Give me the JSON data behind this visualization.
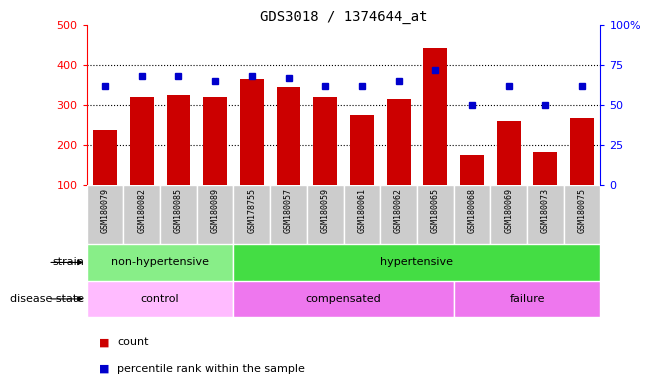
{
  "title": "GDS3018 / 1374644_at",
  "samples": [
    "GSM180079",
    "GSM180082",
    "GSM180085",
    "GSM180089",
    "GSM178755",
    "GSM180057",
    "GSM180059",
    "GSM180061",
    "GSM180062",
    "GSM180065",
    "GSM180068",
    "GSM180069",
    "GSM180073",
    "GSM180075"
  ],
  "counts": [
    236,
    320,
    325,
    320,
    365,
    345,
    320,
    275,
    315,
    443,
    175,
    260,
    182,
    268
  ],
  "percentile_ranks": [
    62,
    68,
    68,
    65,
    68,
    67,
    62,
    62,
    65,
    72,
    50,
    62,
    50,
    62
  ],
  "ylim_left": [
    100,
    500
  ],
  "ylim_right": [
    0,
    100
  ],
  "yticks_left": [
    100,
    200,
    300,
    400,
    500
  ],
  "ytick_labels_left": [
    "100",
    "200",
    "300",
    "400",
    "500"
  ],
  "yticks_right": [
    0,
    25,
    50,
    75,
    100
  ],
  "ytick_labels_right": [
    "0",
    "25",
    "50",
    "75",
    "100%"
  ],
  "bar_color": "#cc0000",
  "dot_color": "#0000cc",
  "plot_bg": "#ffffff",
  "tick_label_bg": "#cccccc",
  "strain_groups": [
    {
      "label": "non-hypertensive",
      "start": 0,
      "end": 4,
      "color": "#88ee88"
    },
    {
      "label": "hypertensive",
      "start": 4,
      "end": 14,
      "color": "#44dd44"
    }
  ],
  "disease_groups": [
    {
      "label": "control",
      "start": 0,
      "end": 4,
      "color": "#ffbbff"
    },
    {
      "label": "compensated",
      "start": 4,
      "end": 10,
      "color": "#ee77ee"
    },
    {
      "label": "failure",
      "start": 10,
      "end": 14,
      "color": "#ee77ee"
    }
  ],
  "legend_count_label": "count",
  "legend_percentile_label": "percentile rank within the sample",
  "strain_label": "strain",
  "disease_label": "disease state",
  "background_color": "#ffffff"
}
